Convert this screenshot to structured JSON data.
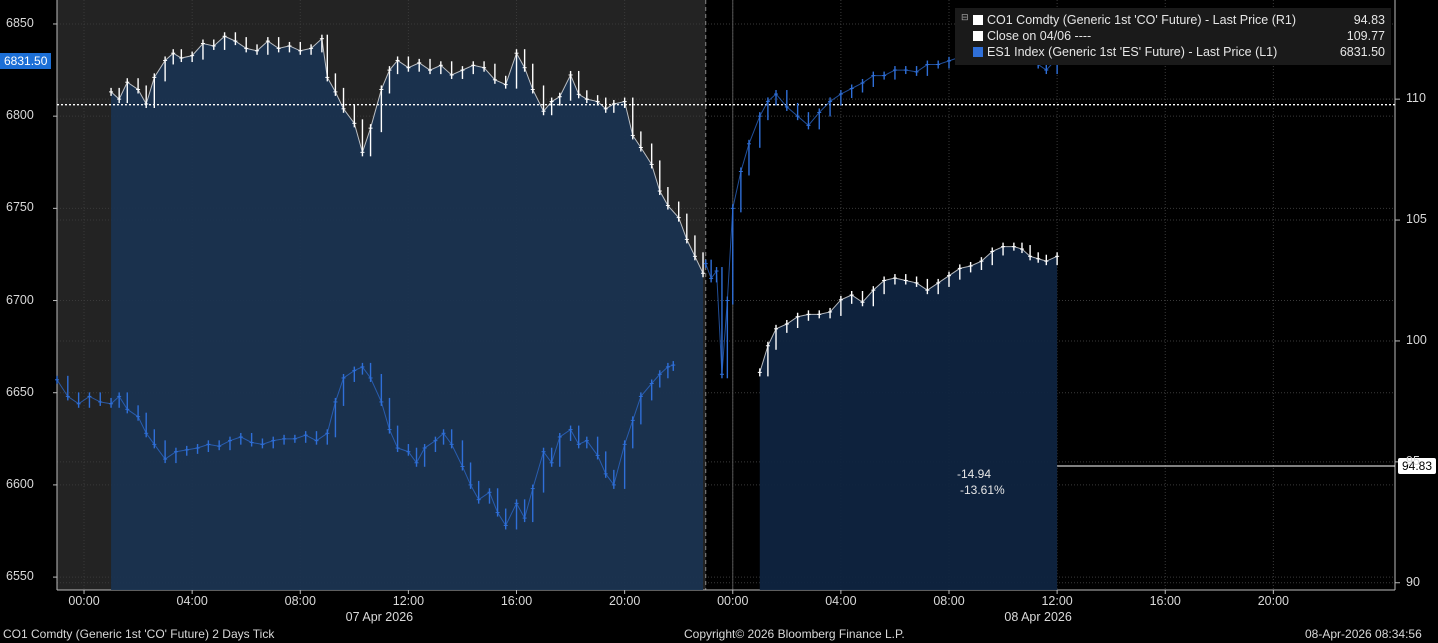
{
  "chart_data": {
    "type": "line",
    "left_axis": {
      "ticks": [
        6550,
        6600,
        6650,
        6700,
        6750,
        6800,
        6850
      ],
      "ylim": [
        6543,
        6863
      ]
    },
    "right_axis": {
      "ticks": [
        90,
        95,
        100,
        105,
        110
      ],
      "ylim": [
        89.7,
        114.1
      ]
    },
    "x_ticks": [
      "00:00",
      "04:00",
      "08:00",
      "12:00",
      "16:00",
      "20:00",
      "00:00",
      "04:00",
      "08:00",
      "12:00",
      "16:00",
      "20:00"
    ],
    "x_dates": [
      "07 Apr 2026",
      "08 Apr 2026"
    ],
    "x_range_hours": [
      -1,
      48.5
    ],
    "series": [
      {
        "name": "CO1 Comdty (Generic 1st 'CO' Future) - Last Price (R1)",
        "axis": "right",
        "color": "#ffffff",
        "style": "white-bars",
        "segments": [
          {
            "x": [
              1.0,
              1.3,
              1.6,
              2.0,
              2.3,
              2.6,
              3.0,
              3.3,
              3.6,
              4.0,
              4.4,
              4.8,
              5.2,
              5.6,
              6.0,
              6.4,
              6.8,
              7.2,
              7.6,
              8.0,
              8.4,
              8.8,
              9.0,
              9.3,
              9.6,
              10.0,
              10.3,
              10.6,
              11.0,
              11.3,
              11.6,
              12.0,
              12.4,
              12.8,
              13.2,
              13.6,
              14.0,
              14.4,
              14.8,
              15.2,
              15.6,
              16.0,
              16.3,
              16.6,
              17.0,
              17.3,
              17.6,
              18.0,
              18.3,
              18.6,
              19.0,
              19.3,
              19.6,
              20.0,
              20.3,
              20.6,
              21.0,
              21.3,
              21.6,
              22.0,
              22.3,
              22.6,
              22.9
            ],
            "y": [
              110.3,
              110.0,
              110.7,
              110.4,
              109.8,
              110.9,
              111.6,
              111.9,
              111.7,
              111.8,
              112.3,
              112.2,
              112.6,
              112.4,
              112.1,
              112.0,
              112.4,
              112.1,
              112.2,
              112.0,
              112.1,
              112.5,
              110.9,
              110.3,
              109.6,
              109.0,
              107.8,
              108.8,
              110.4,
              111.2,
              111.6,
              111.3,
              111.5,
              111.2,
              111.4,
              111.0,
              111.2,
              111.4,
              111.3,
              110.8,
              110.6,
              111.9,
              111.3,
              110.4,
              109.5,
              109.9,
              110.1,
              111.0,
              110.2,
              110.0,
              109.9,
              109.6,
              109.8,
              109.9,
              108.5,
              108.0,
              107.3,
              106.2,
              105.6,
              105.1,
              104.2,
              103.5,
              102.8
            ]
          },
          {
            "x": [
              25.0,
              25.3,
              25.6,
              26.0,
              26.4,
              26.8,
              27.2,
              27.6,
              28.0,
              28.4,
              28.8,
              29.2,
              29.6,
              30.0,
              30.4,
              30.8,
              31.2,
              31.6,
              32.0,
              32.4,
              32.8,
              33.2,
              33.6,
              34.0,
              34.4,
              34.7,
              35.0,
              35.3,
              35.6,
              36.0
            ],
            "y": [
              98.7,
              99.8,
              100.5,
              100.7,
              101.0,
              101.1,
              101.1,
              101.2,
              101.7,
              101.9,
              101.6,
              102.1,
              102.5,
              102.6,
              102.5,
              102.4,
              102.1,
              102.4,
              102.7,
              103.0,
              103.1,
              103.3,
              103.7,
              103.9,
              103.9,
              103.8,
              103.5,
              103.4,
              103.3,
              103.5
            ]
          }
        ],
        "last": 94.83
      },
      {
        "name": "Close on 04/06 ----",
        "axis": "right",
        "color": "#ffffff",
        "style": "dotted",
        "value": 109.77
      },
      {
        "name": "ES1 Index (Generic 1st 'ES' Future) - Last Price (L1)",
        "axis": "left",
        "color": "#2f6fd8",
        "style": "blue-bars",
        "segments": [
          {
            "x": [
              -1.0,
              -0.6,
              -0.2,
              0.2,
              0.6,
              1.0,
              1.3,
              1.6,
              2.0,
              2.3,
              2.6,
              3.0,
              3.4,
              3.8,
              4.2,
              4.6,
              5.0,
              5.4,
              5.8,
              6.2,
              6.6,
              7.0,
              7.4,
              7.8,
              8.2,
              8.6,
              9.0,
              9.3,
              9.6,
              10.0,
              10.3,
              10.6,
              11.0,
              11.3,
              11.6,
              12.0,
              12.3,
              12.6,
              13.0,
              13.3,
              13.6,
              14.0,
              14.3,
              14.6,
              15.0,
              15.3,
              15.6,
              16.0,
              16.3,
              16.6,
              17.0,
              17.3,
              17.6,
              18.0,
              18.3,
              18.6,
              19.0,
              19.3,
              19.6,
              20.0,
              20.3,
              20.6,
              21.0,
              21.3,
              21.6,
              21.8
            ],
            "y": [
              6657,
              6648,
              6644,
              6648,
              6645,
              6644,
              6648,
              6641,
              6637,
              6628,
              6622,
              6614,
              6618,
              6619,
              6620,
              6622,
              6621,
              6624,
              6626,
              6623,
              6622,
              6624,
              6625,
              6625,
              6627,
              6624,
              6628,
              6645,
              6658,
              6662,
              6664,
              6658,
              6645,
              6630,
              6620,
              6618,
              6612,
              6620,
              6624,
              6628,
              6622,
              6610,
              6600,
              6592,
              6596,
              6585,
              6578,
              6590,
              6582,
              6598,
              6618,
              6612,
              6626,
              6630,
              6622,
              6624,
              6616,
              6606,
              6600,
              6622,
              6635,
              6648,
              6655,
              6660,
              6664,
              6665
            ]
          },
          {
            "x": [
              23.0,
              23.2,
              23.4,
              23.6,
              23.8,
              24.0,
              24.3,
              24.6,
              25.0,
              25.3,
              25.6,
              26.0,
              26.4,
              26.8,
              27.2,
              27.6,
              28.0,
              28.4,
              28.8,
              29.2,
              29.6,
              30.0,
              30.4,
              30.8,
              31.2,
              31.6,
              32.0,
              32.4,
              32.8,
              33.2,
              33.6,
              34.0,
              34.4,
              34.7,
              35.0,
              35.3,
              35.6,
              36.0
            ],
            "y": [
              6720,
              6712,
              6716,
              6660,
              6700,
              6750,
              6770,
              6785,
              6800,
              6808,
              6812,
              6805,
              6800,
              6795,
              6802,
              6808,
              6812,
              6815,
              6818,
              6822,
              6822,
              6825,
              6825,
              6824,
              6828,
              6828,
              6830,
              6832,
              6832,
              6836,
              6838,
              6833,
              6835,
              6834,
              6832,
              6828,
              6825,
              6831.5
            ]
          }
        ],
        "last": 6831.5
      }
    ],
    "annotations": {
      "change": "-14.94",
      "change_pct": "-13.61%"
    }
  },
  "legend": {
    "items": [
      {
        "label": "CO1 Comdty (Generic 1st 'CO' Future) - Last Price (R1)",
        "value": "94.83",
        "color": "#ffffff"
      },
      {
        "label": "Close on 04/06 ----",
        "value": "109.77",
        "color": "#ffffff"
      },
      {
        "label": "ES1 Index (Generic 1st 'ES' Future) - Last Price (L1)",
        "value": "6831.50",
        "color": "#2f6fd8"
      }
    ]
  },
  "last_price_labels": {
    "left": "6831.50",
    "right": "94.83"
  },
  "footer": {
    "left": "CO1 Comdty (Generic 1st 'CO' Future) 2 Days Tick",
    "center": "Copyright© 2026 Bloomberg Finance L.P.",
    "right": "08-Apr-2026 08:34:56"
  }
}
